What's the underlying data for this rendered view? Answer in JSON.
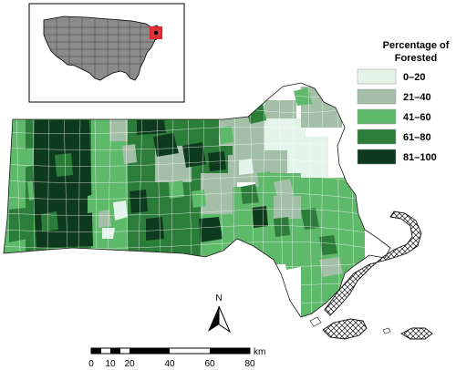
{
  "legend": {
    "title_line1": "Percentage of",
    "title_line2": "Forested",
    "classes": [
      {
        "label": "0–20",
        "color": "#e3f4ea"
      },
      {
        "label": "21–40",
        "color": "#a3bfa8"
      },
      {
        "label": "41–60",
        "color": "#5fb96b"
      },
      {
        "label": "61–80",
        "color": "#2c7d3a"
      },
      {
        "label": "81–100",
        "color": "#0d3a1c"
      }
    ]
  },
  "inset": {
    "us_fill": "#8a8a8a",
    "highlight_color": "#e8262b"
  },
  "north_arrow": {
    "label": "N"
  },
  "scale_bar": {
    "unit": "km",
    "ticks": [
      "0",
      "10",
      "20",
      "40",
      "60",
      "80"
    ]
  }
}
